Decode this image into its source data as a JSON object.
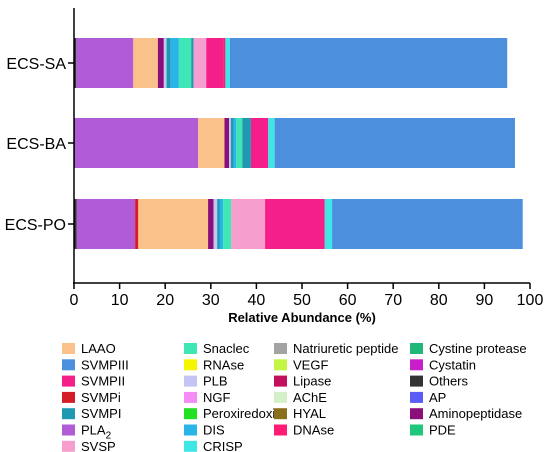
{
  "chart_data": {
    "type": "bar",
    "orientation": "horizontal",
    "stacked": true,
    "xlabel": "Relative Abundance (%)",
    "xlim": [
      0,
      100
    ],
    "xticks": [
      0,
      10,
      20,
      30,
      40,
      50,
      60,
      70,
      80,
      90,
      100
    ],
    "grid": false,
    "legend_position": "bottom",
    "categories": [
      "ECS-SA",
      "ECS-BA",
      "ECS-PO"
    ],
    "series": [
      {
        "name": "Others",
        "color": "#333333",
        "values": [
          0.5,
          0.2,
          0.6
        ]
      },
      {
        "name": "PLA",
        "label_subscript": "2",
        "color": "#b05cd6",
        "values": [
          12.5,
          27.0,
          12.8
        ]
      },
      {
        "name": "SVMPi",
        "color": "#d51d27",
        "values": [
          0,
          0,
          0.7
        ]
      },
      {
        "name": "LAAO",
        "color": "#fbc18b",
        "values": [
          5.4,
          5.8,
          15.3
        ]
      },
      {
        "name": "Aminopeptidase",
        "color": "#8a0f7a",
        "values": [
          1.3,
          1.0,
          1.2
        ]
      },
      {
        "name": "PLB",
        "color": "#c5c5f5",
        "values": [
          0.6,
          0.4,
          0.8
        ]
      },
      {
        "name": "SVMPI",
        "color": "#1f98b1",
        "values": [
          0.9,
          0.6,
          0.6
        ]
      },
      {
        "name": "DIS",
        "color": "#29b5e8",
        "values": [
          1.8,
          0.6,
          0.7
        ]
      },
      {
        "name": "Snaclec",
        "color": "#3fe6b6",
        "values": [
          2.7,
          1.3,
          1.8
        ]
      },
      {
        "name": "SVMPI",
        "color": "#1f98b1",
        "values": [
          0.5,
          1.9,
          0
        ]
      },
      {
        "name": "SVSP",
        "color": "#f69fcf",
        "values": [
          2.8,
          0,
          7.4
        ]
      },
      {
        "name": "SVMPII",
        "color": "#f51f8a",
        "values": [
          3.7,
          3.8,
          13.1
        ]
      },
      {
        "name": "DNAse",
        "color": "#ff1a76",
        "values": [
          0.5,
          0,
          0
        ]
      },
      {
        "name": "CRISP",
        "color": "#3ee6e6",
        "values": [
          1.0,
          1.4,
          1.6
        ]
      },
      {
        "name": "SVMPIII",
        "color": "#4b8fdd",
        "values": [
          60.8,
          52.7,
          41.8
        ]
      }
    ]
  },
  "legend": {
    "columns": [
      [
        {
          "label": "LAAO",
          "color": "#fbc18b"
        },
        {
          "label": "SVMPIII",
          "color": "#4b8fdd"
        },
        {
          "label": "SVMPII",
          "color": "#f51f8a"
        },
        {
          "label": "SVMPi",
          "color": "#d51d27"
        },
        {
          "label": "SVMPI",
          "color": "#1f98b1"
        },
        {
          "label": "PLA",
          "sub": "2",
          "color": "#b05cd6"
        },
        {
          "label": "SVSP",
          "color": "#f69fcf"
        }
      ],
      [
        {
          "label": "Snaclec",
          "color": "#3fe6b6"
        },
        {
          "label": "RNAse",
          "color": "#f5f500"
        },
        {
          "label": "PLB",
          "color": "#c5c5f5"
        },
        {
          "label": "NGF",
          "color": "#f58cf5"
        },
        {
          "label": "Peroxiredoxin",
          "color": "#22e022"
        },
        {
          "label": "DIS",
          "color": "#29b5e8"
        },
        {
          "label": "CRISP",
          "color": "#3ee6e6"
        }
      ],
      [
        {
          "label": "Natriuretic peptide",
          "color": "#a3a3a3"
        },
        {
          "label": "VEGF",
          "color": "#c4f542"
        },
        {
          "label": "Lipase",
          "color": "#c3105e"
        },
        {
          "label": "AChE",
          "color": "#d5f0c9"
        },
        {
          "label": "HYAL",
          "color": "#8a6f1c"
        },
        {
          "label": "DNAse",
          "color": "#ff1a76"
        }
      ],
      [
        {
          "label": "Cystine protease",
          "color": "#1fb87a"
        },
        {
          "label": "Cystatin",
          "color": "#c91fc9"
        },
        {
          "label": "Others",
          "color": "#333333"
        },
        {
          "label": "AP",
          "color": "#5b5bf5"
        },
        {
          "label": "Aminopeptidase",
          "color": "#8a0f7a"
        },
        {
          "label": "PDE",
          "color": "#1fc77a"
        }
      ]
    ]
  }
}
